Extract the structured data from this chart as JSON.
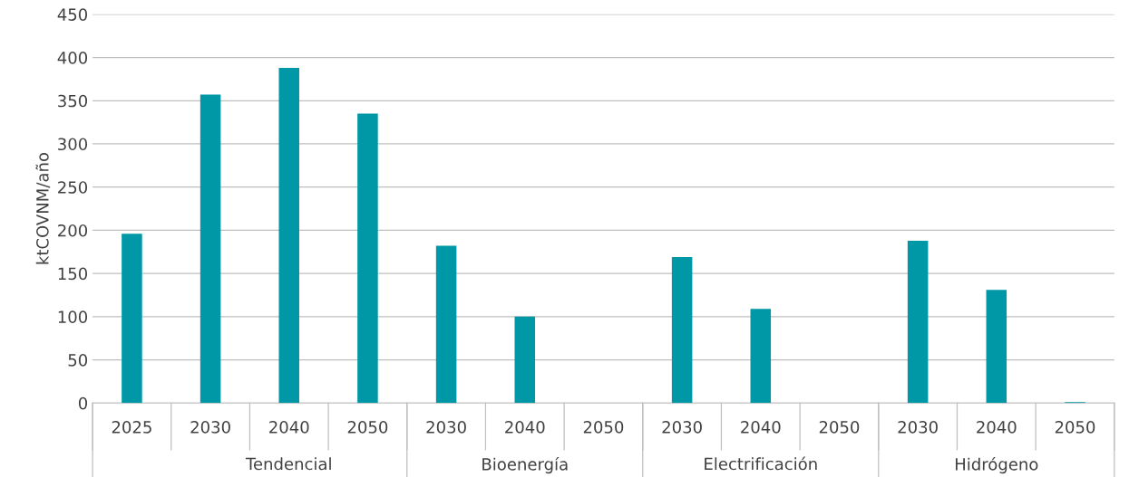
{
  "chart_data": {
    "type": "bar",
    "ylabel": "ktCOVNM/año",
    "categories": [
      "2025",
      "2030",
      "2040",
      "2050",
      "2030",
      "2040",
      "2050",
      "2030",
      "2040",
      "2050",
      "2030",
      "2040",
      "2050"
    ],
    "values": [
      196,
      357,
      388,
      335,
      182,
      100,
      0,
      169,
      109,
      0,
      188,
      131,
      1
    ],
    "color": "#0097a7",
    "ylim": [
      0,
      450
    ],
    "yticks": [
      0,
      50,
      100,
      150,
      200,
      250,
      300,
      350,
      400,
      450
    ],
    "grid": "y",
    "annotations": [
      "Tendencial",
      "Bioenergía",
      "Electrificación",
      "Hidrógeno"
    ]
  }
}
